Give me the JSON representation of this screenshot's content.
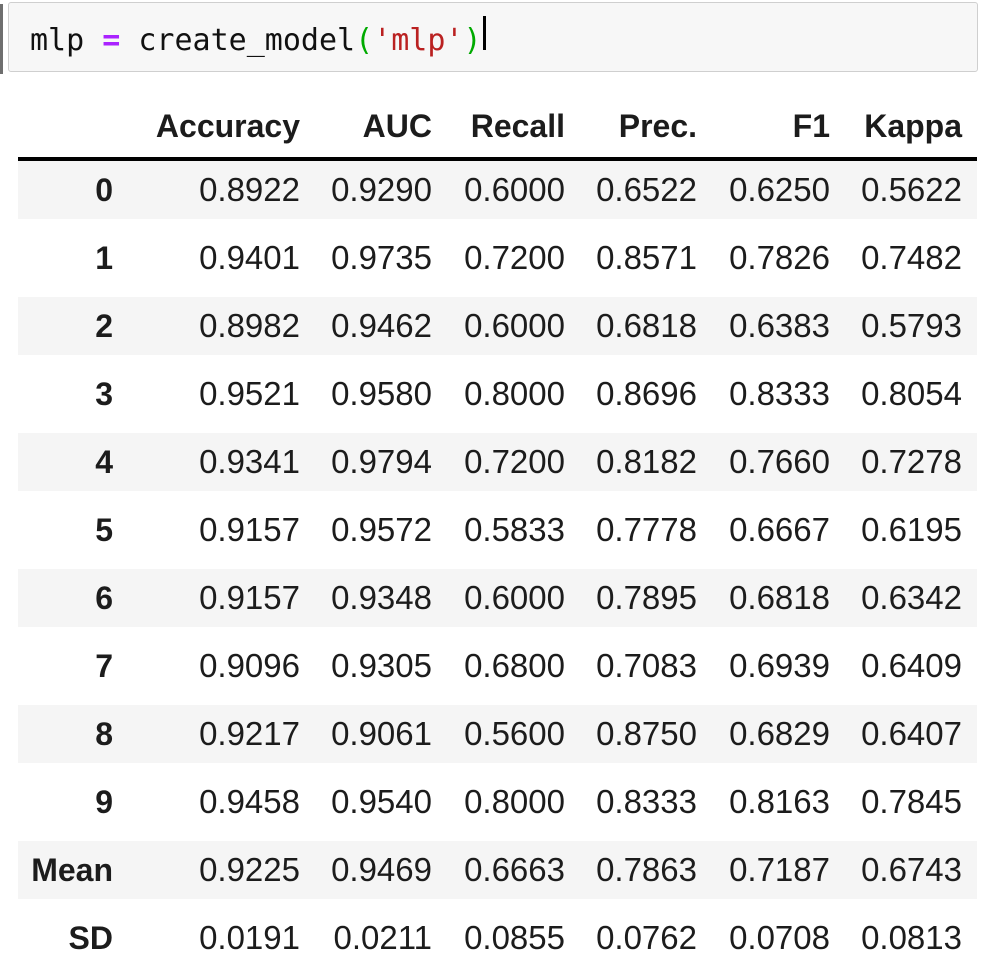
{
  "notebook": {
    "code_cell": {
      "source": "mlp = create_model('mlp')",
      "tokens": [
        {
          "type": "name",
          "text": "mlp"
        },
        {
          "type": "plain",
          "text": " "
        },
        {
          "type": "operator",
          "text": "="
        },
        {
          "type": "plain",
          "text": " "
        },
        {
          "type": "name",
          "text": "create_model"
        },
        {
          "type": "bracket",
          "text": "("
        },
        {
          "type": "string",
          "text": "'mlp'"
        },
        {
          "type": "bracket",
          "text": ")"
        }
      ],
      "token_colors": {
        "name": "#111111",
        "plain": "#111111",
        "operator": "#AA22FF",
        "bracket": "#00AA00",
        "string": "#BA2121"
      },
      "background": "#f7f7f7",
      "border_color": "#cfcfcf",
      "cursor_visible": true
    },
    "output_table": {
      "columns": [
        "",
        "Accuracy",
        "AUC",
        "Recall",
        "Prec.",
        "F1",
        "Kappa"
      ],
      "rows": [
        {
          "index": "0",
          "values": [
            "0.8922",
            "0.9290",
            "0.6000",
            "0.6522",
            "0.6250",
            "0.5622"
          ]
        },
        {
          "index": "1",
          "values": [
            "0.9401",
            "0.9735",
            "0.7200",
            "0.8571",
            "0.7826",
            "0.7482"
          ]
        },
        {
          "index": "2",
          "values": [
            "0.8982",
            "0.9462",
            "0.6000",
            "0.6818",
            "0.6383",
            "0.5793"
          ]
        },
        {
          "index": "3",
          "values": [
            "0.9521",
            "0.9580",
            "0.8000",
            "0.8696",
            "0.8333",
            "0.8054"
          ]
        },
        {
          "index": "4",
          "values": [
            "0.9341",
            "0.9794",
            "0.7200",
            "0.8182",
            "0.7660",
            "0.7278"
          ]
        },
        {
          "index": "5",
          "values": [
            "0.9157",
            "0.9572",
            "0.5833",
            "0.7778",
            "0.6667",
            "0.6195"
          ]
        },
        {
          "index": "6",
          "values": [
            "0.9157",
            "0.9348",
            "0.6000",
            "0.7895",
            "0.6818",
            "0.6342"
          ]
        },
        {
          "index": "7",
          "values": [
            "0.9096",
            "0.9305",
            "0.6800",
            "0.7083",
            "0.6939",
            "0.6409"
          ]
        },
        {
          "index": "8",
          "values": [
            "0.9217",
            "0.9061",
            "0.5600",
            "0.8750",
            "0.6829",
            "0.6407"
          ]
        },
        {
          "index": "9",
          "values": [
            "0.9458",
            "0.9540",
            "0.8000",
            "0.8333",
            "0.8163",
            "0.7845"
          ]
        },
        {
          "index": "Mean",
          "values": [
            "0.9225",
            "0.9469",
            "0.6663",
            "0.7863",
            "0.7187",
            "0.6743"
          ]
        },
        {
          "index": "SD",
          "values": [
            "0.0191",
            "0.0211",
            "0.0855",
            "0.0762",
            "0.0708",
            "0.0813"
          ]
        }
      ],
      "stripe_color": "#f5f5f5",
      "header_divider_color": "#000000",
      "text_color": "#1c1c1c"
    }
  }
}
